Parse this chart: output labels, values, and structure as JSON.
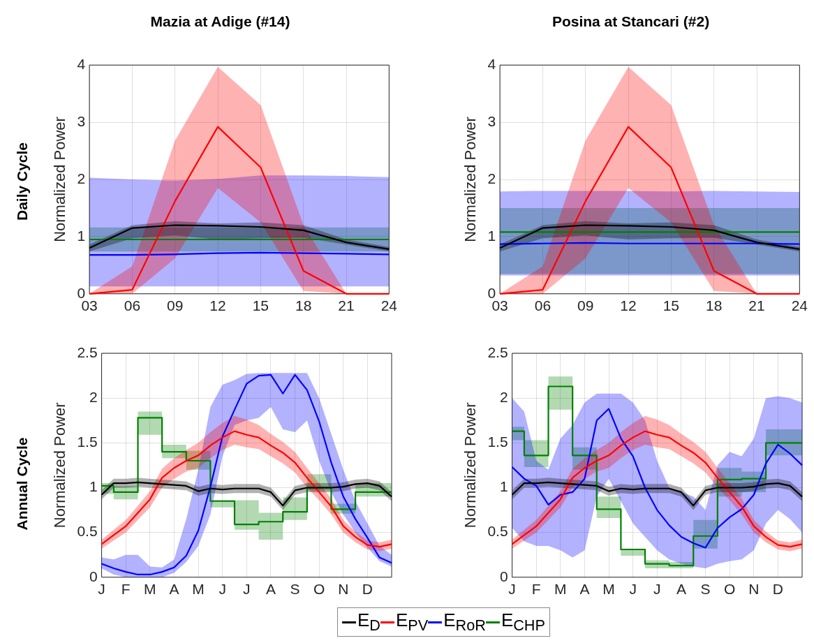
{
  "chart_data": [
    {
      "type": "line",
      "title": "Mazia at Adige (#14)",
      "ylabel": "Normalized Power",
      "annotations": [
        "Daily Cycle"
      ],
      "grid": true,
      "x": [
        3,
        6,
        9,
        12,
        15,
        18,
        21,
        24
      ],
      "xlim": [
        3,
        24
      ],
      "xticks": [
        {
          "value": 3,
          "label": "03"
        },
        {
          "value": 6,
          "label": "06"
        },
        {
          "value": 9,
          "label": "09"
        },
        12,
        15,
        18,
        21,
        24
      ],
      "ylim": [
        0,
        4
      ],
      "yticks": [
        0,
        1,
        2,
        3,
        4
      ],
      "series": [
        {
          "color": "#000000",
          "values": [
            0.8,
            1.15,
            1.2,
            1.19,
            1.17,
            1.11,
            0.9,
            0.78
          ],
          "lower": [
            0.74,
            0.97,
            1.02,
            0.95,
            0.97,
            0.98,
            0.86,
            0.74
          ],
          "upper": [
            0.86,
            1.2,
            1.27,
            1.23,
            1.25,
            1.2,
            0.95,
            0.82
          ]
        },
        {
          "color": "#ff0000",
          "values": [
            0,
            0.07,
            1.62,
            2.92,
            2.21,
            0.4,
            0,
            0
          ],
          "lower": [
            0,
            0,
            0.62,
            1.85,
            1.25,
            0.05,
            0,
            0
          ],
          "upper": [
            0,
            0.48,
            2.68,
            3.97,
            3.3,
            1.2,
            0,
            0
          ]
        },
        {
          "color": "#0000ff",
          "values": [
            0.68,
            0.68,
            0.69,
            0.71,
            0.72,
            0.71,
            0.7,
            0.69
          ],
          "lower": [
            0.13,
            0.13,
            0.13,
            0.13,
            0.13,
            0.13,
            0.13,
            0.13
          ],
          "upper": [
            2.03,
            2.0,
            1.98,
            2.01,
            2.07,
            2.07,
            2.06,
            2.04
          ]
        },
        {
          "type": "step",
          "color": "#008000",
          "values": [
            0.95,
            0.95,
            0.95,
            0.95,
            0.95,
            0.95,
            0.95,
            0.95
          ],
          "lower": [
            0.74,
            0.74,
            0.74,
            0.74,
            0.74,
            0.74,
            0.74,
            0.74
          ],
          "upper": [
            1.16,
            1.16,
            1.16,
            1.16,
            1.16,
            1.16,
            1.16,
            1.16
          ]
        }
      ]
    },
    {
      "type": "line",
      "title": "Posina at Stancari (#2)",
      "ylabel": "Normalized Power",
      "grid": true,
      "x": [
        3,
        6,
        9,
        12,
        15,
        18,
        21,
        24
      ],
      "xlim": [
        3,
        24
      ],
      "xticks": [
        {
          "value": 3,
          "label": "03"
        },
        {
          "value": 6,
          "label": "06"
        },
        {
          "value": 9,
          "label": "09"
        },
        12,
        15,
        18,
        21,
        24
      ],
      "ylim": [
        0,
        4
      ],
      "yticks": [
        0,
        1,
        2,
        3,
        4
      ],
      "series": [
        {
          "color": "#000000",
          "values": [
            0.8,
            1.15,
            1.2,
            1.19,
            1.17,
            1.11,
            0.9,
            0.78
          ],
          "lower": [
            0.74,
            0.97,
            1.02,
            0.95,
            0.97,
            0.98,
            0.86,
            0.74
          ],
          "upper": [
            0.86,
            1.2,
            1.27,
            1.23,
            1.25,
            1.2,
            0.95,
            0.82
          ]
        },
        {
          "color": "#ff0000",
          "values": [
            0,
            0.07,
            1.62,
            2.92,
            2.21,
            0.4,
            0,
            0
          ],
          "lower": [
            0,
            0,
            0.62,
            1.85,
            1.25,
            0.05,
            0,
            0
          ],
          "upper": [
            0,
            0.48,
            2.68,
            3.97,
            3.3,
            1.2,
            0,
            0
          ]
        },
        {
          "color": "#0000ff",
          "values": [
            0.87,
            0.88,
            0.89,
            0.88,
            0.88,
            0.88,
            0.88,
            0.87
          ],
          "lower": [
            0.32,
            0.32,
            0.32,
            0.32,
            0.32,
            0.32,
            0.32,
            0.32
          ],
          "upper": [
            1.79,
            1.8,
            1.8,
            1.8,
            1.79,
            1.8,
            1.79,
            1.78
          ]
        },
        {
          "type": "step",
          "color": "#008000",
          "values": [
            1.08,
            1.08,
            1.08,
            1.08,
            1.08,
            1.08,
            1.08,
            1.08
          ],
          "lower": [
            0.35,
            0.35,
            0.35,
            0.35,
            0.35,
            0.35,
            0.35,
            0.35
          ],
          "upper": [
            1.5,
            1.5,
            1.5,
            1.5,
            1.5,
            1.5,
            1.5,
            1.5
          ]
        }
      ]
    },
    {
      "type": "line",
      "ylabel": "Normalized Power",
      "annotations": [
        "Annual Cycle"
      ],
      "grid": true,
      "categories": [
        "J",
        null,
        "F",
        null,
        "M",
        null,
        "A",
        null,
        "M",
        null,
        "J",
        null,
        "J",
        null,
        "A",
        null,
        "S",
        null,
        "O",
        null,
        "N",
        null,
        "D",
        null,
        null
      ],
      "ylim": [
        0,
        2.5
      ],
      "yticks": [
        0,
        0.5,
        1,
        1.5,
        2,
        2.5
      ],
      "series": [
        {
          "color": "#000000",
          "values": [
            0.92,
            1.05,
            1.05,
            1.06,
            1.05,
            1.04,
            1.03,
            1.02,
            0.96,
            0.99,
            0.98,
            0.99,
            0.99,
            0.99,
            0.95,
            0.8,
            0.97,
            1.0,
            1.0,
            1.0,
            1.01,
            1.04,
            1.05,
            1.02,
            0.9
          ],
          "lower": [
            0.87,
            1.0,
            1.0,
            1.01,
            1.0,
            0.99,
            0.98,
            0.97,
            0.91,
            0.94,
            0.93,
            0.94,
            0.94,
            0.94,
            0.9,
            0.75,
            0.92,
            0.95,
            0.95,
            0.95,
            0.96,
            0.99,
            1.0,
            0.97,
            0.85
          ],
          "upper": [
            0.97,
            1.1,
            1.1,
            1.11,
            1.1,
            1.09,
            1.08,
            1.07,
            1.01,
            1.04,
            1.03,
            1.04,
            1.04,
            1.04,
            1.0,
            0.85,
            1.02,
            1.05,
            1.05,
            1.05,
            1.06,
            1.09,
            1.1,
            1.07,
            0.95
          ]
        },
        {
          "color": "#ff0000",
          "values": [
            0.37,
            0.47,
            0.57,
            0.72,
            0.87,
            1.11,
            1.22,
            1.3,
            1.36,
            1.47,
            1.56,
            1.63,
            1.59,
            1.56,
            1.47,
            1.39,
            1.28,
            1.11,
            0.95,
            0.79,
            0.57,
            0.45,
            0.36,
            0.34,
            0.37
          ],
          "lower": [
            0.32,
            0.41,
            0.5,
            0.64,
            0.78,
            1.0,
            1.1,
            1.18,
            1.22,
            1.33,
            1.42,
            1.48,
            1.45,
            1.43,
            1.35,
            1.27,
            1.17,
            1.0,
            0.86,
            0.7,
            0.5,
            0.39,
            0.31,
            0.29,
            0.32
          ],
          "upper": [
            0.42,
            0.53,
            0.64,
            0.8,
            0.96,
            1.21,
            1.33,
            1.42,
            1.5,
            1.62,
            1.72,
            1.8,
            1.76,
            1.7,
            1.6,
            1.51,
            1.4,
            1.22,
            1.05,
            0.88,
            0.64,
            0.51,
            0.41,
            0.39,
            0.42
          ]
        },
        {
          "color": "#0000ff",
          "values": [
            0.15,
            0.1,
            0.06,
            0.03,
            0.03,
            0.06,
            0.11,
            0.24,
            0.52,
            1.01,
            1.57,
            1.87,
            2.16,
            2.25,
            2.26,
            2.05,
            2.26,
            2.09,
            1.74,
            1.28,
            0.9,
            0.65,
            0.44,
            0.22,
            0.16
          ],
          "lower": [
            0.1,
            0.03,
            0,
            0,
            0,
            0,
            0.05,
            0.17,
            0.35,
            0.7,
            1.35,
            1.7,
            1.75,
            1.78,
            1.9,
            1.65,
            1.62,
            1.75,
            1.3,
            0.95,
            0.7,
            0.5,
            0.33,
            0.18,
            0.12
          ],
          "upper": [
            0.22,
            0.2,
            0.25,
            0.25,
            0.12,
            0.11,
            0.2,
            0.65,
            1.2,
            1.9,
            2.15,
            2.2,
            2.27,
            2.28,
            2.28,
            2.28,
            2.28,
            2.28,
            2.0,
            1.6,
            1.2,
            0.85,
            0.6,
            0.35,
            0.25
          ]
        },
        {
          "type": "step",
          "color": "#008000",
          "values": [
            1.02,
            1.02,
            0.95,
            0.95,
            1.78,
            1.78,
            1.4,
            1.4,
            1.3,
            1.3,
            0.85,
            0.85,
            0.59,
            0.59,
            0.62,
            0.62,
            0.73,
            0.73,
            1.0,
            1.0,
            0.76,
            0.76,
            0.95,
            0.95,
            0.95
          ],
          "lower": [
            0.93,
            0.93,
            0.87,
            0.87,
            1.59,
            1.59,
            1.33,
            1.33,
            1.2,
            1.2,
            0.78,
            0.78,
            0.53,
            0.53,
            0.42,
            0.42,
            0.64,
            0.64,
            0.97,
            0.97,
            0.71,
            0.71,
            0.9,
            0.9,
            0.9
          ],
          "upper": [
            1.05,
            1.05,
            1.02,
            1.02,
            1.85,
            1.85,
            1.48,
            1.48,
            1.41,
            1.41,
            0.86,
            0.86,
            0.86,
            0.86,
            0.72,
            0.72,
            0.89,
            0.89,
            1.15,
            1.15,
            0.82,
            0.82,
            1.05,
            1.05,
            1.05
          ]
        }
      ]
    },
    {
      "type": "line",
      "ylabel": "Normalized Power",
      "grid": true,
      "legend": "bottom",
      "categories": [
        "J",
        null,
        "F",
        null,
        "M",
        null,
        "A",
        null,
        "M",
        null,
        "J",
        null,
        "J",
        null,
        "A",
        null,
        "S",
        null,
        "O",
        null,
        "N",
        null,
        "D",
        null,
        null
      ],
      "ylim": [
        0,
        2.5
      ],
      "yticks": [
        0,
        0.5,
        1,
        1.5,
        2,
        2.5
      ],
      "series": [
        {
          "name": "E$_{D}$",
          "color": "#000000",
          "values": [
            0.92,
            1.05,
            1.05,
            1.06,
            1.05,
            1.04,
            1.03,
            1.02,
            0.96,
            0.99,
            0.98,
            0.99,
            0.99,
            0.99,
            0.95,
            0.8,
            0.97,
            1.0,
            1.0,
            1.0,
            1.01,
            1.04,
            1.05,
            1.02,
            0.9
          ],
          "lower": [
            0.87,
            1.0,
            1.0,
            1.01,
            1.0,
            0.99,
            0.98,
            0.97,
            0.91,
            0.94,
            0.93,
            0.94,
            0.94,
            0.94,
            0.9,
            0.75,
            0.92,
            0.95,
            0.95,
            0.95,
            0.96,
            0.99,
            1.0,
            0.97,
            0.85
          ],
          "upper": [
            0.97,
            1.1,
            1.1,
            1.11,
            1.1,
            1.09,
            1.08,
            1.07,
            1.01,
            1.04,
            1.03,
            1.04,
            1.04,
            1.04,
            1.0,
            0.85,
            1.02,
            1.05,
            1.05,
            1.05,
            1.06,
            1.09,
            1.1,
            1.07,
            0.95
          ]
        },
        {
          "name": "E$_{PV}$",
          "color": "#ff0000",
          "values": [
            0.37,
            0.47,
            0.57,
            0.72,
            0.87,
            1.11,
            1.22,
            1.3,
            1.36,
            1.47,
            1.56,
            1.63,
            1.59,
            1.56,
            1.47,
            1.39,
            1.28,
            1.11,
            0.95,
            0.79,
            0.57,
            0.45,
            0.36,
            0.34,
            0.37
          ],
          "lower": [
            0.32,
            0.41,
            0.5,
            0.64,
            0.78,
            1.0,
            1.1,
            1.18,
            1.22,
            1.33,
            1.42,
            1.48,
            1.45,
            1.43,
            1.35,
            1.27,
            1.17,
            1.0,
            0.86,
            0.7,
            0.5,
            0.39,
            0.31,
            0.29,
            0.32
          ],
          "upper": [
            0.42,
            0.53,
            0.64,
            0.8,
            0.96,
            1.21,
            1.33,
            1.42,
            1.5,
            1.62,
            1.72,
            1.8,
            1.76,
            1.7,
            1.6,
            1.51,
            1.4,
            1.22,
            1.05,
            0.88,
            0.64,
            0.51,
            0.41,
            0.39,
            0.42
          ]
        },
        {
          "name": "E$_{RoR}$",
          "color": "#0000ff",
          "values": [
            1.23,
            1.1,
            1.02,
            0.81,
            0.92,
            0.95,
            1.1,
            1.75,
            1.88,
            1.55,
            1.35,
            1.0,
            0.75,
            0.58,
            0.45,
            0.38,
            0.33,
            0.55,
            0.67,
            0.76,
            0.92,
            1.27,
            1.48,
            1.38,
            1.25
          ],
          "lower": [
            0.55,
            0.4,
            0.35,
            0.35,
            0.3,
            0.22,
            0.3,
            0.9,
            1.1,
            0.85,
            0.6,
            0.45,
            0.3,
            0.2,
            0.15,
            0.12,
            0.1,
            0.15,
            0.18,
            0.2,
            0.3,
            0.6,
            0.75,
            0.65,
            0.5
          ],
          "upper": [
            2.0,
            1.85,
            1.3,
            1.2,
            1.55,
            1.7,
            1.95,
            2.05,
            2.05,
            2.05,
            1.95,
            1.75,
            1.3,
            1.0,
            0.95,
            0.9,
            0.75,
            1.25,
            1.4,
            1.35,
            1.55,
            2.0,
            2.02,
            2.0,
            1.95
          ]
        },
        {
          "name": "E$_{CHP}$",
          "type": "step",
          "color": "#008000",
          "values": [
            1.63,
            1.63,
            1.36,
            1.36,
            2.13,
            2.13,
            1.36,
            1.36,
            0.76,
            0.76,
            0.31,
            0.31,
            0.15,
            0.15,
            0.13,
            0.13,
            0.46,
            0.46,
            1.09,
            1.09,
            1.1,
            1.1,
            1.5,
            1.5,
            1.5
          ],
          "lower": [
            1.53,
            1.53,
            1.23,
            1.23,
            1.87,
            1.87,
            1.2,
            1.2,
            0.66,
            0.66,
            0.24,
            0.24,
            0.1,
            0.1,
            0.1,
            0.1,
            0.32,
            0.32,
            0.9,
            0.9,
            0.95,
            0.95,
            1.36,
            1.36,
            1.36
          ],
          "upper": [
            1.68,
            1.68,
            1.53,
            1.53,
            2.24,
            2.24,
            1.45,
            1.45,
            0.9,
            0.9,
            0.31,
            0.31,
            0.19,
            0.19,
            0.17,
            0.17,
            0.64,
            0.64,
            1.22,
            1.22,
            1.18,
            1.18,
            1.65,
            1.65,
            1.65
          ]
        }
      ]
    }
  ]
}
